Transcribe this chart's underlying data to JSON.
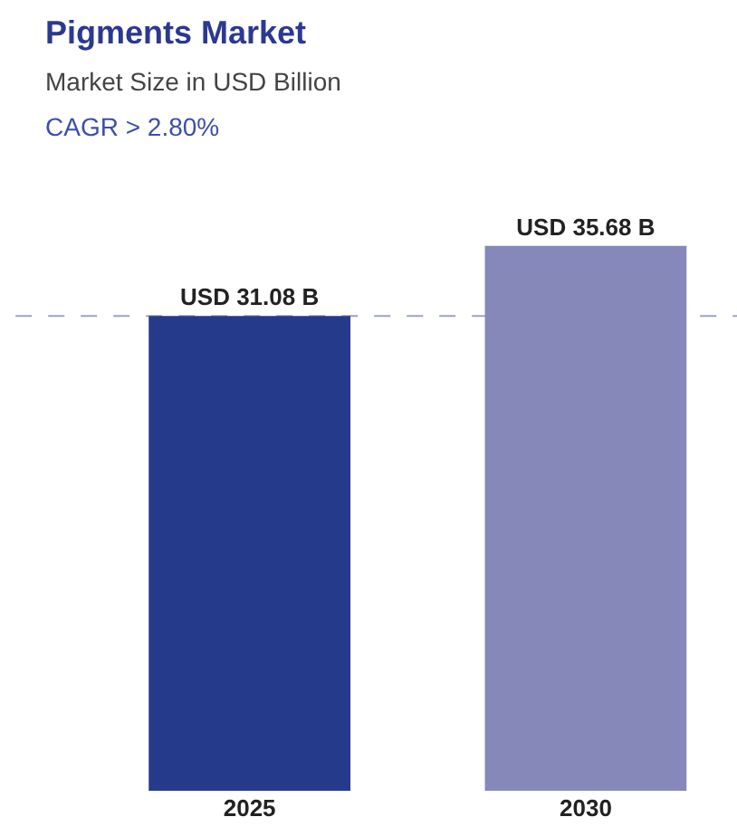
{
  "chart_data": {
    "type": "bar",
    "title": "Pigments Market",
    "subtitle": "Market Size in USD Billion",
    "annotations": [
      "CAGR > 2.80%"
    ],
    "categories": [
      "2025",
      "2030"
    ],
    "values": [
      31.08,
      35.68
    ],
    "colors": [
      "#253a8a",
      "#8588b9"
    ],
    "value_labels": [
      "USD 31.08 B",
      "USD 35.68 B"
    ],
    "tick_labels": "x",
    "grid": false,
    "ref_lines": [
      {
        "axis": "y",
        "value": 31.08,
        "color": "#9aa3c8",
        "line_style": "dashed"
      }
    ]
  }
}
